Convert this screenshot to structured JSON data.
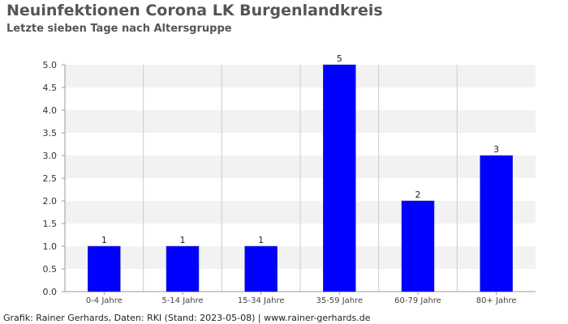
{
  "title": "Neuinfektionen Corona LK Burgenlandkreis",
  "subtitle": "Letzte sieben Tage nach Altersgruppe",
  "footer": "Grafik: Rainer Gerhards, Daten: RKI (Stand: 2023-05-08) | www.rainer-gerhards.de",
  "chart_data": {
    "type": "bar",
    "categories": [
      "0-4 Jahre",
      "5-14 Jahre",
      "15-34 Jahre",
      "35-59 Jahre",
      "60-79 Jahre",
      "80+ Jahre"
    ],
    "values": [
      1,
      1,
      1,
      5,
      2,
      3
    ],
    "data_labels": [
      "1",
      "1",
      "1",
      "5",
      "2",
      "3"
    ],
    "y_ticks": [
      "0.0",
      "0.5",
      "1.0",
      "1.5",
      "2.0",
      "2.5",
      "3.0",
      "3.5",
      "4.0",
      "4.5",
      "5.0"
    ],
    "ylim": [
      0,
      5
    ],
    "bar_color": "#0000ff",
    "grid": true,
    "band_color": "#f2f2f2"
  }
}
